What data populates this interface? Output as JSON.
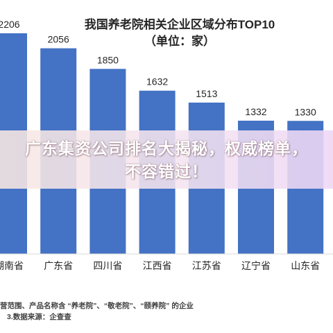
{
  "chart_data": {
    "type": "bar",
    "title": "我国养老院相关企业区域分布TOP10",
    "subtitle": "（单位：家）",
    "categories": [
      "湖南省",
      "广东省",
      "四川省",
      "江西省",
      "江苏省",
      "辽宁省",
      "山东省"
    ],
    "values": [
      2206,
      2056,
      1850,
      1632,
      1513,
      1332,
      1330
    ],
    "data_labels": [
      "2206",
      "2056",
      "1850",
      "1632",
      "1513",
      "1332",
      "1330"
    ],
    "ylim": [
      0,
      2400
    ],
    "grid": false,
    "bar_color": "#4472c4"
  },
  "footnotes": {
    "line1": "营范围、产品名称含 “养老院”、“敬老院”、“颐养院” 的企业",
    "line2": "3.数据来源：企查查"
  },
  "overlay": {
    "headline": "广东集资公司排名大揭秘，权威榜单，不容错过！"
  }
}
